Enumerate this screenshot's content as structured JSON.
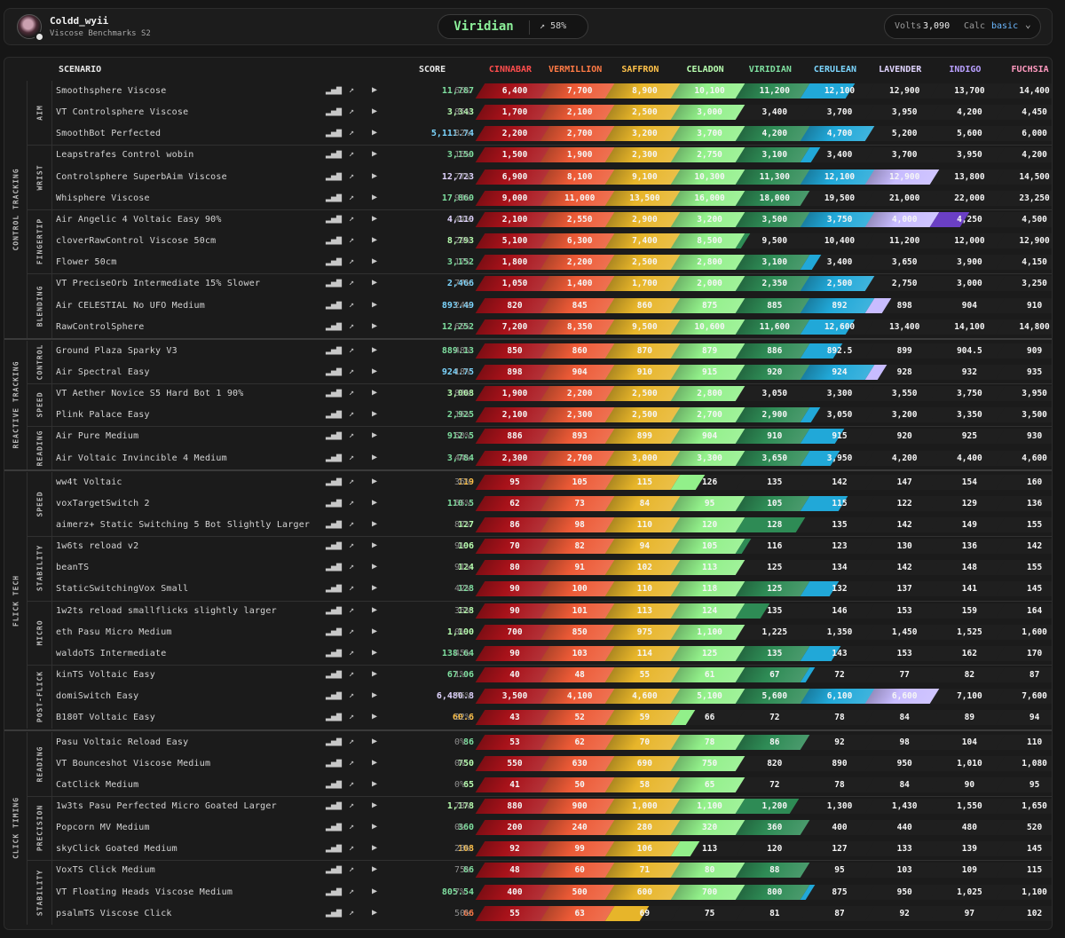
{
  "user": {
    "name": "Coldd_wyii",
    "subtitle": "Viscose Benchmarks S2"
  },
  "rank": {
    "name": "Viridian",
    "progress": "58%"
  },
  "volts": {
    "label": "Volts",
    "value": "3,090"
  },
  "calc": {
    "label": "Calc",
    "value": "basic"
  },
  "header": {
    "scenario": "SCENARIO",
    "score": "SCORE"
  },
  "ranks": [
    {
      "name": "CINNABAR",
      "color": "#ff4d4d",
      "fill": "#a8121a"
    },
    {
      "name": "VERMILLION",
      "color": "#ff7a45",
      "fill": "#ec5a36"
    },
    {
      "name": "SAFFRON",
      "color": "#ffc24a",
      "fill": "#e7b52a"
    },
    {
      "name": "CELADON",
      "color": "#b8ffb0",
      "fill": "#92f08a"
    },
    {
      "name": "VIRIDIAN",
      "color": "#7fe0a0",
      "fill": "#2e8b55"
    },
    {
      "name": "CERULEAN",
      "color": "#7cd6ff",
      "fill": "#21a8d8"
    },
    {
      "name": "LAVENDER",
      "color": "#e0d4ff",
      "fill": "#c8bcff"
    },
    {
      "name": "INDIGO",
      "color": "#b9a0ff",
      "fill": "#6a3fc4"
    },
    {
      "name": "FUCHSIA",
      "color": "#ff9ac0",
      "fill": "#d63384"
    }
  ],
  "categories": [
    {
      "name": "CONTROL TRACKING",
      "subs": [
        {
          "name": "AIM",
          "rows": [
            {
              "n": "Smoothsphere Viscose",
              "s": "11,787",
              "p": "65%",
              "t": [
                "6,400",
                "7,700",
                "8,900",
                "10,100",
                "11,200",
                "12,100",
                "12,900",
                "13,700",
                "14,400"
              ],
              "c": 5,
              "f": 0.65
            },
            {
              "n": "VT Controlsphere Viscose",
              "s": "3,343",
              "p": "85%",
              "t": [
                "1,700",
                "2,100",
                "2,500",
                "3,000",
                "3,400",
                "3,700",
                "3,950",
                "4,200",
                "4,450"
              ],
              "c": 4,
              "f": 0
            },
            {
              "n": "SmoothBot Perfected",
              "s": "5,111.74",
              "p": "82%",
              "t": [
                "2,200",
                "2,700",
                "3,200",
                "3,700",
                "4,200",
                "4,700",
                "5,200",
                "5,600",
                "6,000"
              ],
              "c": 6,
              "f": 0
            }
          ]
        },
        {
          "name": "WRIST",
          "rows": [
            {
              "n": "Leapstrafes Control wobin",
              "s": "3,150",
              "p": "16%",
              "t": [
                "1,500",
                "1,900",
                "2,300",
                "2,750",
                "3,100",
                "3,400",
                "3,700",
                "3,950",
                "4,200"
              ],
              "c": 5,
              "f": 0.16
            },
            {
              "n": "Controlsphere SuperbAim Viscose",
              "s": "12,723",
              "p": "77%",
              "t": [
                "6,900",
                "8,100",
                "9,100",
                "10,300",
                "11,300",
                "12,100",
                "12,900",
                "13,800",
                "14,500"
              ],
              "c": 7,
              "f": 0
            },
            {
              "n": "Whisphere Viscose",
              "s": "17,860",
              "p": "93%",
              "t": [
                "9,000",
                "11,000",
                "13,500",
                "16,000",
                "18,000",
                "19,500",
                "21,000",
                "22,000",
                "23,250"
              ],
              "c": 5,
              "f": 0
            }
          ]
        },
        {
          "name": "FINGERTIP",
          "rows": [
            {
              "n": "Air Angelic 4 Voltaic Easy 90%",
              "s": "4,110",
              "p": "44%",
              "t": [
                "2,100",
                "2,550",
                "2,900",
                "3,200",
                "3,500",
                "3,750",
                "4,000",
                "4,250",
                "4,500"
              ],
              "c": 7,
              "f": 0.44
            },
            {
              "n": "cloverRawControl Viscose 50cm",
              "s": "8,793",
              "p": "29%",
              "t": [
                "5,100",
                "6,300",
                "7,400",
                "8,500",
                "9,500",
                "10,400",
                "11,200",
                "12,000",
                "12,900"
              ],
              "c": 4,
              "f": 0.05
            },
            {
              "n": "Flower 50cm",
              "s": "3,152",
              "p": "17%",
              "t": [
                "1,800",
                "2,200",
                "2,500",
                "2,800",
                "3,100",
                "3,400",
                "3,650",
                "3,900",
                "4,150"
              ],
              "c": 5,
              "f": 0.17
            }
          ]
        },
        {
          "name": "BLENDING",
          "rows": [
            {
              "n": "VT PreciseOrb Intermediate 15% Slower",
              "s": "2,466",
              "p": "77%",
              "t": [
                "1,050",
                "1,400",
                "1,700",
                "2,000",
                "2,350",
                "2,500",
                "2,750",
                "3,000",
                "3,250"
              ],
              "c": 6,
              "f": 0
            },
            {
              "n": "Air CELESTIAL No UFO Medium",
              "s": "893.49",
              "p": "24%",
              "t": [
                "820",
                "845",
                "860",
                "875",
                "885",
                "892",
                "898",
                "904",
                "910"
              ],
              "c": 6,
              "f": 0.24
            },
            {
              "n": "RawControlSphere",
              "s": "12,252",
              "p": "65%",
              "t": [
                "7,200",
                "8,350",
                "9,500",
                "10,600",
                "11,600",
                "12,600",
                "13,400",
                "14,100",
                "14,800"
              ],
              "c": 5,
              "f": 0.65
            }
          ]
        }
      ]
    },
    {
      "name": "REACTIVE TRACKING",
      "subs": [
        {
          "name": "CONTROL",
          "rows": [
            {
              "n": "Ground Plaza Sparky V3",
              "s": "889.13",
              "p": "48%",
              "t": [
                "850",
                "860",
                "870",
                "879",
                "886",
                "892.5",
                "899",
                "904.5",
                "909"
              ],
              "c": 5,
              "f": 0.48
            },
            {
              "n": "Air Spectral Easy",
              "s": "924.75",
              "p": "18%",
              "t": [
                "898",
                "904",
                "910",
                "915",
                "920",
                "924",
                "928",
                "932",
                "935"
              ],
              "c": 6,
              "f": 0.18
            }
          ]
        },
        {
          "name": "SPEED",
          "rows": [
            {
              "n": "VT Aether Novice S5 Hard Bot 1 90%",
              "s": "3,008",
              "p": "83%",
              "t": [
                "1,900",
                "2,200",
                "2,500",
                "2,800",
                "3,050",
                "3,300",
                "3,550",
                "3,750",
                "3,950"
              ],
              "c": 4,
              "f": 0
            },
            {
              "n": "Plink Palace Easy",
              "s": "2,925",
              "p": "16%",
              "t": [
                "2,100",
                "2,300",
                "2,500",
                "2,700",
                "2,900",
                "3,050",
                "3,200",
                "3,350",
                "3,500"
              ],
              "c": 5,
              "f": 0.16
            }
          ]
        },
        {
          "name": "READING",
          "rows": [
            {
              "n": "Air Pure Medium",
              "s": "912.5",
              "p": "50%",
              "t": [
                "886",
                "893",
                "899",
                "904",
                "910",
                "915",
                "920",
                "925",
                "930"
              ],
              "c": 5,
              "f": 0.5
            },
            {
              "n": "Air Voltaic Invincible 4 Medium",
              "s": "3,784",
              "p": "44%",
              "t": [
                "2,300",
                "2,700",
                "3,000",
                "3,300",
                "3,650",
                "3,950",
                "4,200",
                "4,400",
                "4,600"
              ],
              "c": 5,
              "f": 0.44
            }
          ]
        }
      ]
    },
    {
      "name": "FLICK TECH",
      "subs": [
        {
          "name": "SPEED",
          "rows": [
            {
              "n": "ww4t Voltaic",
              "s": "119",
              "p": "36%",
              "t": [
                "95",
                "105",
                "115",
                "126",
                "135",
                "142",
                "147",
                "154",
                "160"
              ],
              "c": 3,
              "f": 0.36
            },
            {
              "n": "voxTargetSwitch 2",
              "s": "110.5",
              "p": "55%",
              "t": [
                "62",
                "73",
                "84",
                "95",
                "105",
                "115",
                "122",
                "129",
                "136"
              ],
              "c": 5,
              "f": 0.55
            },
            {
              "n": "aimerz+ Static Switching 5 Bot Slightly Larger",
              "s": "127",
              "p": "87%",
              "t": [
                "86",
                "98",
                "110",
                "120",
                "128",
                "135",
                "142",
                "149",
                "155"
              ],
              "c": 4,
              "f": 0.87
            }
          ]
        },
        {
          "name": "STABILITY",
          "rows": [
            {
              "n": "1w6ts reload v2",
              "s": "106",
              "p": "9%",
              "t": [
                "70",
                "82",
                "94",
                "105",
                "116",
                "123",
                "130",
                "136",
                "142"
              ],
              "c": 4,
              "f": 0.09
            },
            {
              "n": "beanTS",
              "s": "124",
              "p": "91%",
              "t": [
                "80",
                "91",
                "102",
                "113",
                "125",
                "134",
                "142",
                "148",
                "155"
              ],
              "c": 4,
              "f": 0
            },
            {
              "n": "StaticSwitchingVox Small",
              "s": "128",
              "p": "42%",
              "t": [
                "90",
                "100",
                "110",
                "118",
                "125",
                "132",
                "137",
                "141",
                "145"
              ],
              "c": 5,
              "f": 0.42
            }
          ]
        },
        {
          "name": "MICRO",
          "rows": [
            {
              "n": "1w2ts reload smallflicks slightly larger",
              "s": "128",
              "p": "36%",
              "t": [
                "90",
                "101",
                "113",
                "124",
                "135",
                "146",
                "153",
                "159",
                "164"
              ],
              "c": 4,
              "f": 0.36
            },
            {
              "n": "eth Pasu Micro Medium",
              "s": "1,100",
              "p": "0%",
              "t": [
                "700",
                "850",
                "975",
                "1,100",
                "1,225",
                "1,350",
                "1,450",
                "1,525",
                "1,600"
              ],
              "c": 4,
              "f": 0
            },
            {
              "n": "waldoTS Intermediate",
              "s": "138.64",
              "p": "45%",
              "t": [
                "90",
                "103",
                "114",
                "125",
                "135",
                "143",
                "153",
                "162",
                "170"
              ],
              "c": 5,
              "f": 0.45
            }
          ]
        },
        {
          "name": "POST-FLICK",
          "rows": [
            {
              "n": "kinTS Voltaic Easy",
              "s": "67.06",
              "p": "1%",
              "t": [
                "40",
                "48",
                "55",
                "61",
                "67",
                "72",
                "77",
                "82",
                "87"
              ],
              "c": 5,
              "f": 0.01
            },
            {
              "n": "domiSwitch Easy",
              "s": "6,480.8",
              "p": "76%",
              "t": [
                "3,500",
                "4,100",
                "4,600",
                "5,100",
                "5,600",
                "6,100",
                "6,600",
                "7,100",
                "7,600"
              ],
              "c": 7,
              "f": 0
            },
            {
              "n": "B180T Voltaic Easy",
              "s": "60.6",
              "p": "22%",
              "t": [
                "43",
                "52",
                "59",
                "66",
                "72",
                "78",
                "84",
                "89",
                "94"
              ],
              "c": 3,
              "f": 0.22
            }
          ]
        }
      ]
    },
    {
      "name": "CLICK TIMING",
      "subs": [
        {
          "name": "READING",
          "rows": [
            {
              "n": "Pasu Voltaic Reload Easy",
              "s": "86",
              "p": "0%",
              "t": [
                "53",
                "62",
                "70",
                "78",
                "86",
                "92",
                "98",
                "104",
                "110"
              ],
              "c": 5,
              "f": 0
            },
            {
              "n": "VT Bounceshot Viscose Medium",
              "s": "750",
              "p": "0%",
              "t": [
                "550",
                "630",
                "690",
                "750",
                "820",
                "890",
                "950",
                "1,010",
                "1,080"
              ],
              "c": 4,
              "f": 0
            },
            {
              "n": "CatClick Medium",
              "s": "65",
              "p": "0%",
              "t": [
                "41",
                "50",
                "58",
                "65",
                "72",
                "78",
                "84",
                "90",
                "95"
              ],
              "c": 4,
              "f": 0
            }
          ]
        },
        {
          "name": "PRECISION",
          "rows": [
            {
              "n": "1w3ts Pasu Perfected Micro Goated Larger",
              "s": "1,178",
              "p": "78%",
              "t": [
                "880",
                "900",
                "1,000",
                "1,100",
                "1,200",
                "1,300",
                "1,430",
                "1,550",
                "1,650"
              ],
              "c": 4,
              "f": 0.78
            },
            {
              "n": "Popcorn MV Medium",
              "s": "360",
              "p": "0%",
              "t": [
                "200",
                "240",
                "280",
                "320",
                "360",
                "400",
                "440",
                "480",
                "520"
              ],
              "c": 5,
              "f": 0
            },
            {
              "n": "skyClick Goated Medium",
              "s": "108",
              "p": "28%",
              "t": [
                "92",
                "99",
                "106",
                "113",
                "120",
                "127",
                "133",
                "139",
                "145"
              ],
              "c": 3,
              "f": 0.28
            }
          ]
        },
        {
          "name": "STABILITY",
          "rows": [
            {
              "n": "VoxTS Click Medium",
              "s": "86",
              "p": "75%",
              "t": [
                "48",
                "60",
                "71",
                "80",
                "88",
                "95",
                "103",
                "109",
                "115"
              ],
              "c": 5,
              "f": 0
            },
            {
              "n": "VT Floating Heads Viscose Medium",
              "s": "805.54",
              "p": "7%",
              "t": [
                "400",
                "500",
                "600",
                "700",
                "800",
                "875",
                "950",
                "1,025",
                "1,100"
              ],
              "c": 5,
              "f": 0.07
            },
            {
              "n": "psalmTS Viscose Click",
              "s": "66",
              "p": "50%",
              "t": [
                "55",
                "63",
                "69",
                "75",
                "81",
                "87",
                "92",
                "97",
                "102"
              ],
              "c": 2,
              "f": 0.5
            }
          ]
        }
      ]
    }
  ]
}
